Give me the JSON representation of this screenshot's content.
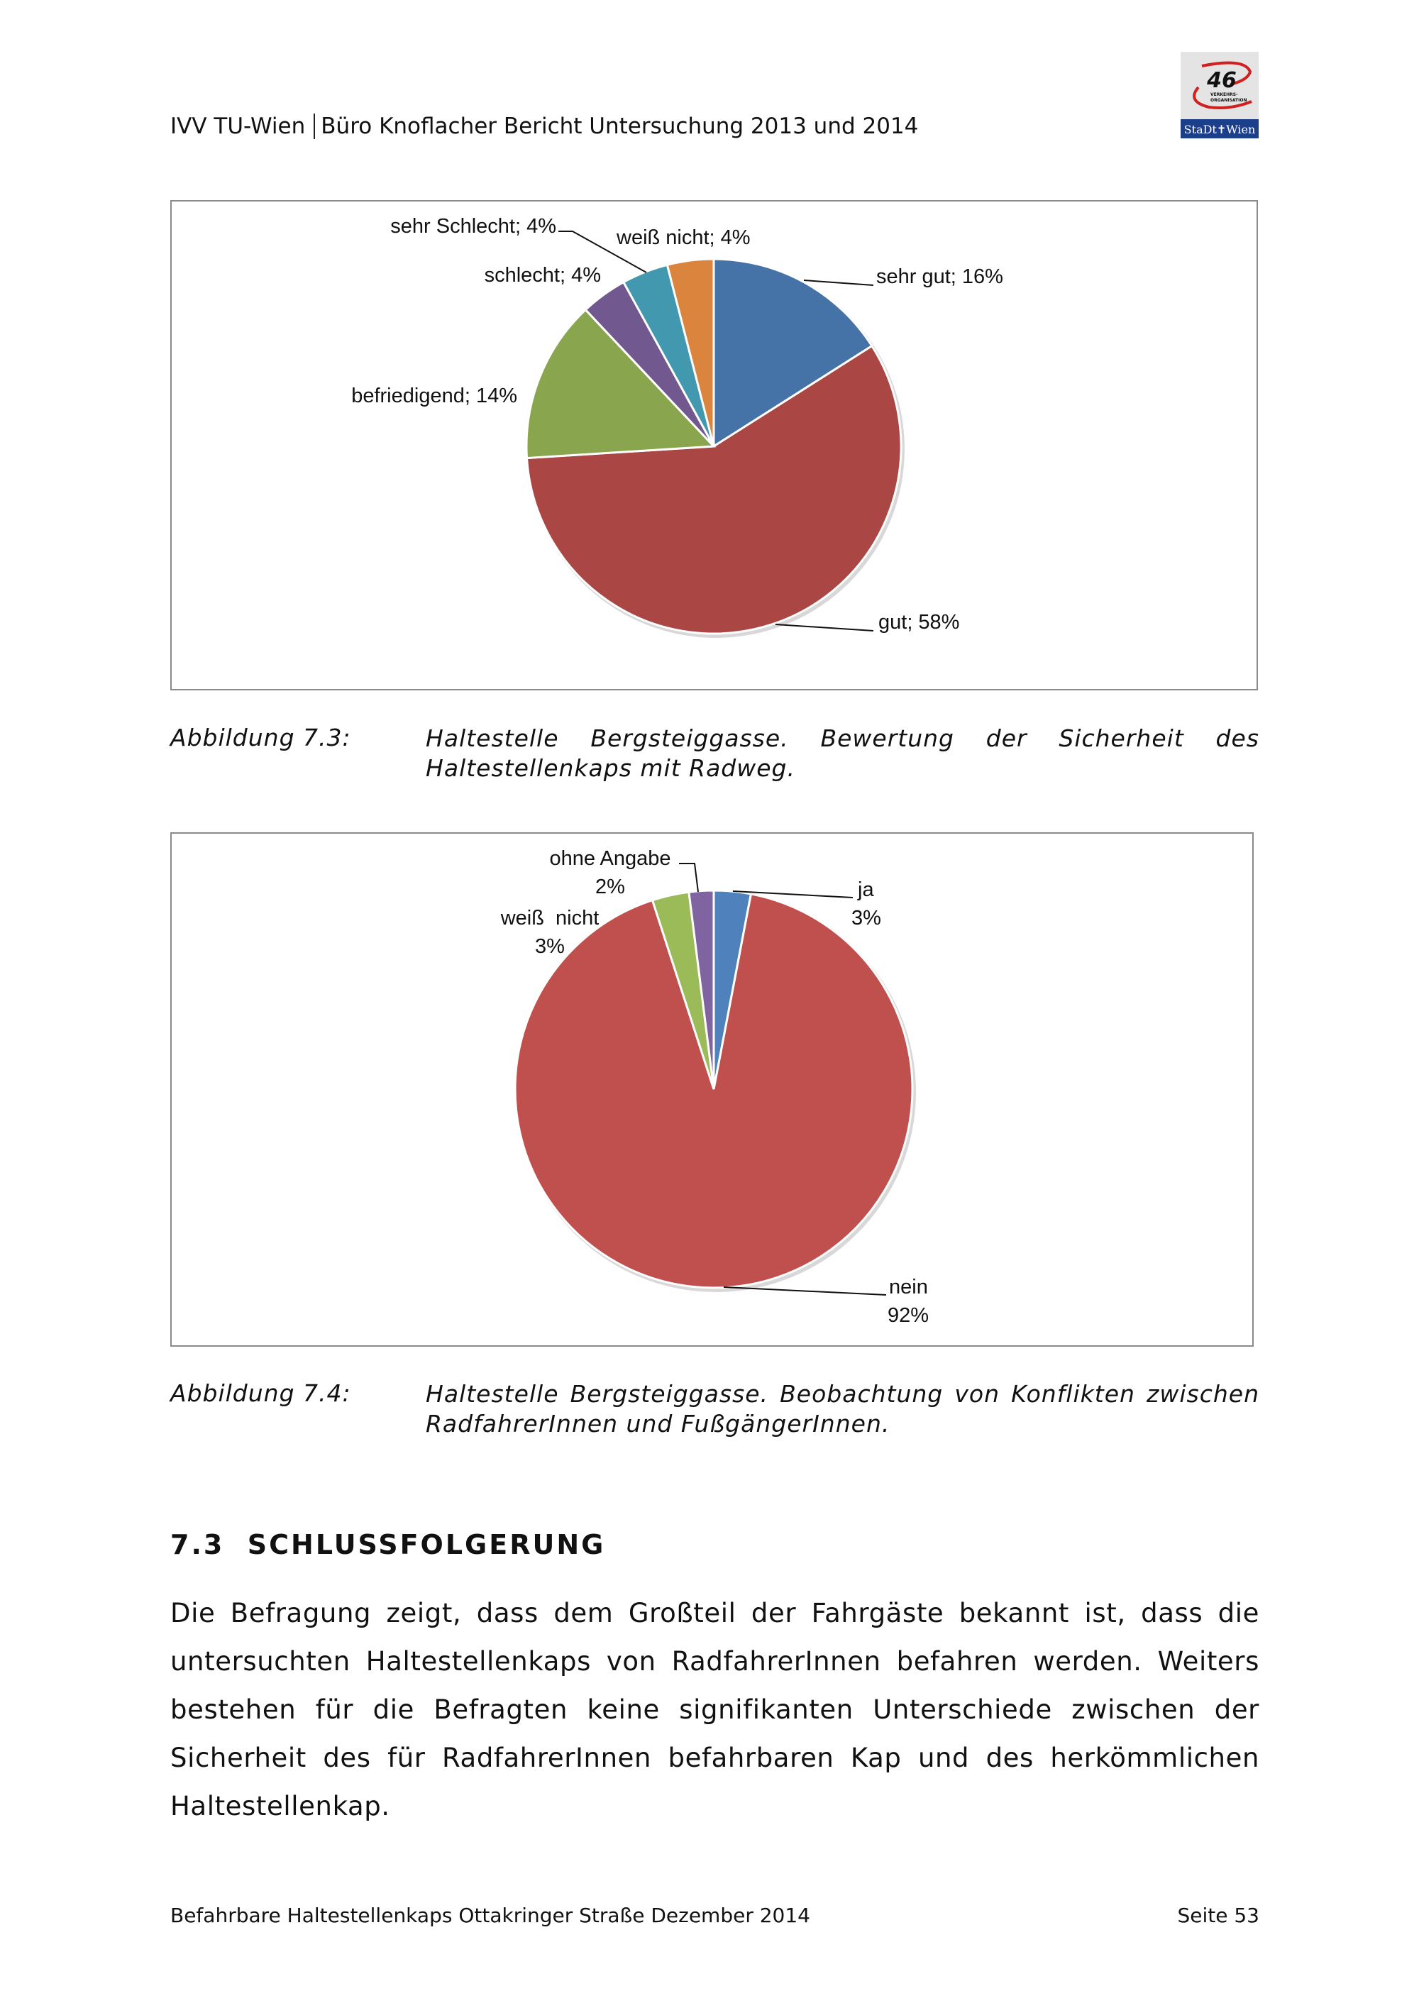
{
  "header": {
    "left": "IVV TU-Wien",
    "right": "Büro Knoflacher Bericht Untersuchung 2013 und 2014",
    "logo_text": [
      "46",
      "VERKEHRS-ORGANISATION",
      "StaDt Wien"
    ]
  },
  "chart_data": [
    {
      "type": "pie",
      "slices": [
        {
          "label": "sehr gut",
          "value": 16,
          "text": "sehr gut; 16%",
          "color": "#4572a7"
        },
        {
          "label": "gut",
          "value": 58,
          "text": "gut; 58%",
          "color": "#aa4643"
        },
        {
          "label": "befriedigend",
          "value": 14,
          "text": "befriedigend; 14%",
          "color": "#89a54e"
        },
        {
          "label": "schlecht",
          "value": 4,
          "text": "schlecht; 4%",
          "color": "#71588f"
        },
        {
          "label": "sehr Schlecht",
          "value": 4,
          "text": "sehr Schlecht; 4%",
          "color": "#4198af"
        },
        {
          "label": "weiß nicht",
          "value": 4,
          "text": "weiß nicht; 4%",
          "color": "#db843d"
        }
      ]
    },
    {
      "type": "pie",
      "slices": [
        {
          "label": "ja",
          "value": 3,
          "pct": "3%",
          "color": "#4f81bd"
        },
        {
          "label": "nein",
          "value": 92,
          "pct": "92%",
          "color": "#c0504d"
        },
        {
          "label": "weiß  nicht",
          "value": 3,
          "pct": "3%",
          "color": "#9bbb59"
        },
        {
          "label": "ohne Angabe",
          "value": 2,
          "pct": "2%",
          "color": "#8064a2"
        }
      ]
    }
  ],
  "captions": [
    {
      "number": "Abbildung 7.3:",
      "text": "Haltestelle Bergsteiggasse. Bewertung der Sicherheit des Haltestellenkaps mit Radweg."
    },
    {
      "number": "Abbildung 7.4:",
      "text": "Haltestelle Bergsteiggasse. Beobachtung von Konflikten zwischen RadfahrerInnen und FußgängerInnen."
    }
  ],
  "section": {
    "heading": "7.3  SCHLUSSFOLGERUNG",
    "paragraph": "Die Befragung zeigt, dass dem Großteil der Fahrgäste bekannt ist, dass die untersuchten Haltestellenkaps von RadfahrerInnen befahren werden. Weiters bestehen für die Befragten keine signifikanten Unterschiede zwischen der Sicherheit des für RadfahrerInnen befahrbaren Kap und des herkömmlichen Haltestellenkap."
  },
  "footer": {
    "left": "Befahrbare Haltestellenkaps Ottakringer Straße Dezember 2014",
    "right": "Seite 53"
  }
}
